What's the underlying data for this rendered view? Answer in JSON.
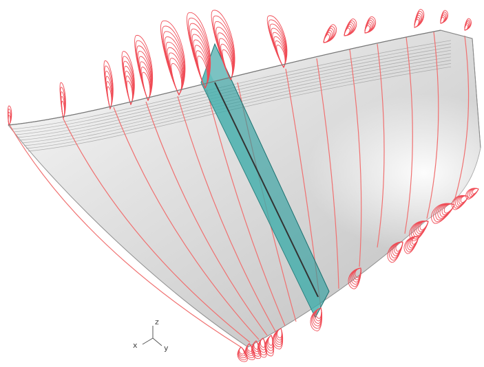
{
  "colors": {
    "background": "#ffffff",
    "surface_light": "#f7f7f7",
    "surface_dark": "#b9b9b9",
    "grid_line": "#9a9a9a",
    "section_line": "#f07070",
    "glyph": "#f04b55",
    "plane_fill": "#2a9d9c",
    "plane_edge": "#1a6f6e",
    "axis": "#555555"
  },
  "triad": {
    "z": "z",
    "x": "x",
    "y": "y"
  },
  "icons": [
    "coordinate-triad-icon"
  ]
}
